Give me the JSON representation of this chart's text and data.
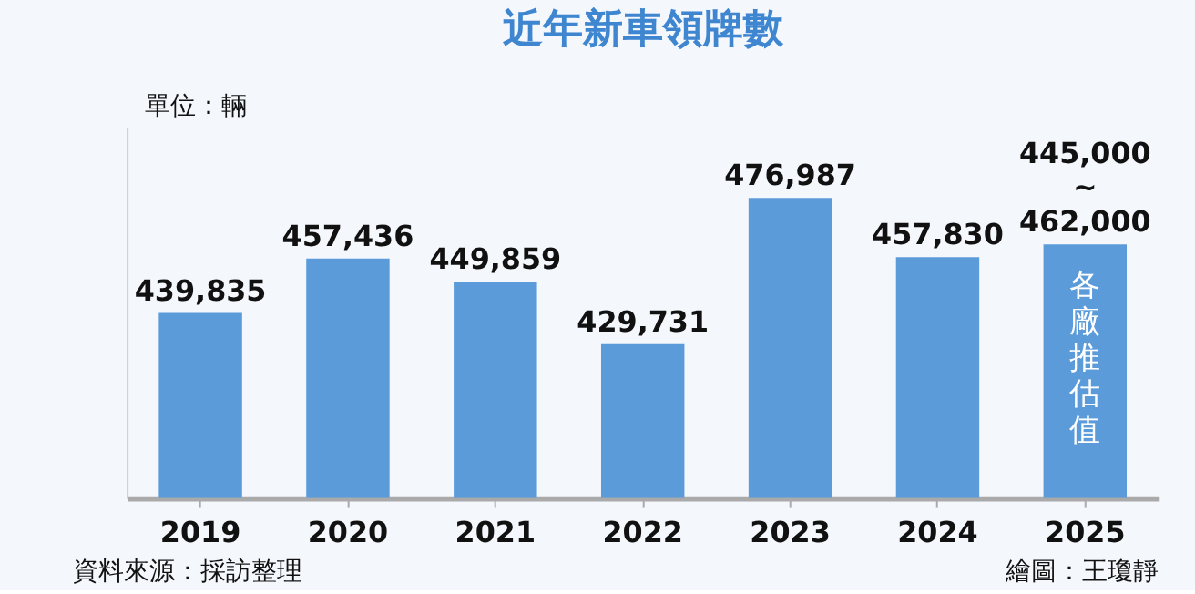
{
  "chart_data": {
    "type": "bar",
    "title": "近年新車領牌數",
    "categories": [
      "2019",
      "2020",
      "2021",
      "2022",
      "2023",
      "2024",
      "2025"
    ],
    "values": [
      439835,
      457436,
      449859,
      429731,
      476987,
      457830,
      462000
    ],
    "value_labels": [
      "439,835",
      "457,436",
      "449,859",
      "429,731",
      "476,987",
      "457,830",
      "445,000\n~\n462,000"
    ],
    "color": "#5b9bd9",
    "ylim": [
      380000,
      500000
    ],
    "tick_labels": "x",
    "annotations": [
      "單位：輛",
      "資料來源：採訪整理",
      "繪圖：王瓊靜",
      "各廠推估值"
    ]
  }
}
